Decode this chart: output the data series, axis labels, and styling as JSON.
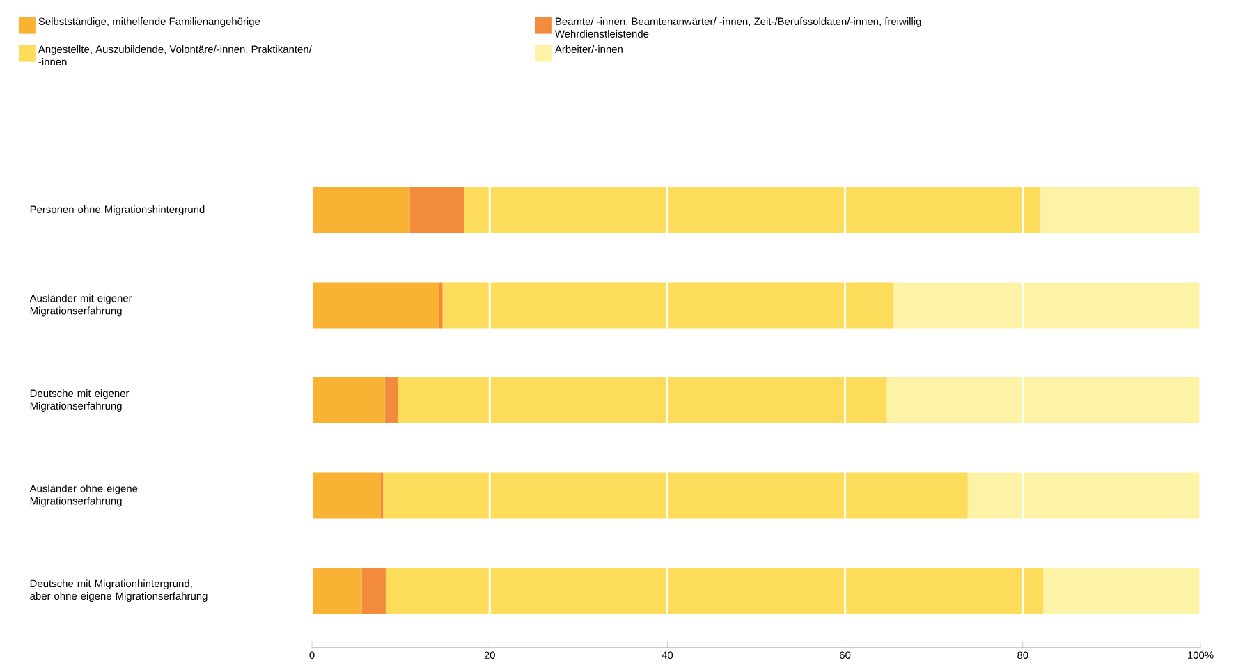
{
  "chart_data": {
    "type": "bar",
    "orientation": "horizontal",
    "stacked": true,
    "categories": [
      "Personen ohne Migrationshintergrund",
      "Ausländer mit eigener Migrationserfahrung",
      "Deutsche mit eigener Migrationserfahrung",
      "Ausländer ohne eigene Migrationserfahrung",
      "Deutsche mit Migrationhintergrund, aber ohne eigene Migrationserfahrung"
    ],
    "series": [
      {
        "name": "Selbstständige, mithelfende Familienangehörige",
        "color": "#f9b233",
        "values": [
          11.0,
          14.3,
          8.2,
          7.7,
          5.6
        ]
      },
      {
        "name": "Beamte/ -innen, Beamtenanwärter/ -innen, Zeit-/Berufssoldaten/-innen, freiwillig Wehrdienstleistende",
        "color": "#f28b3c",
        "values": [
          6.1,
          0.4,
          1.5,
          0.3,
          2.7
        ]
      },
      {
        "name": "Angestellte, Auszubildende, Volontäre/-innen, Praktikanten/ -innen",
        "color": "#fddc5c",
        "values": [
          64.9,
          50.7,
          55.0,
          65.8,
          74.0
        ]
      },
      {
        "name": "Arbeiter/-innen",
        "color": "#fdf3a6",
        "values": [
          18.0,
          34.6,
          35.3,
          26.2,
          17.7
        ]
      }
    ],
    "xlim": [
      0,
      100
    ],
    "xticks": [
      0,
      20,
      40,
      60,
      80,
      {
        "value": 100,
        "label": "100%"
      }
    ],
    "grid": "x",
    "legend": "top"
  }
}
